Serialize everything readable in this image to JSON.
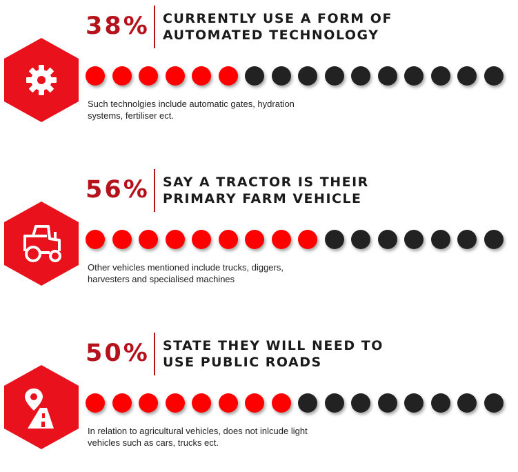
{
  "colors": {
    "accent": "#b5121b",
    "filled_dot": "#ff0000",
    "empty_dot": "#222222",
    "hexagon": "#e8111c"
  },
  "chart_data": {
    "type": "dot-matrix",
    "dots_per_row": 16,
    "stats": [
      {
        "percent_label": "38%",
        "value": 38,
        "filled_dots": 6,
        "headline": [
          "CURRENTLY USE A FORM OF",
          "AUTOMATED TECHNOLOGY"
        ],
        "caption": [
          "Such technolgies include automatic gates, hydration",
          "systems, fertiliser ect."
        ],
        "icon": "gear-icon"
      },
      {
        "percent_label": "56%",
        "value": 56,
        "filled_dots": 9,
        "headline": [
          "SAY A TRACTOR IS THEIR",
          "PRIMARY FARM VEHICLE"
        ],
        "caption": [
          "Other vehicles mentioned include trucks, diggers,",
          "harvesters and specialised machines"
        ],
        "icon": "tractor-icon"
      },
      {
        "percent_label": "50%",
        "value": 50,
        "filled_dots": 8,
        "headline": [
          "STATE THEY WILL NEED TO",
          "USE PUBLIC ROADS"
        ],
        "caption": [
          "In relation to agricultural vehicles, does not inlcude light",
          "vehicles such as cars, trucks ect."
        ],
        "icon": "road-pin-icon"
      }
    ]
  }
}
